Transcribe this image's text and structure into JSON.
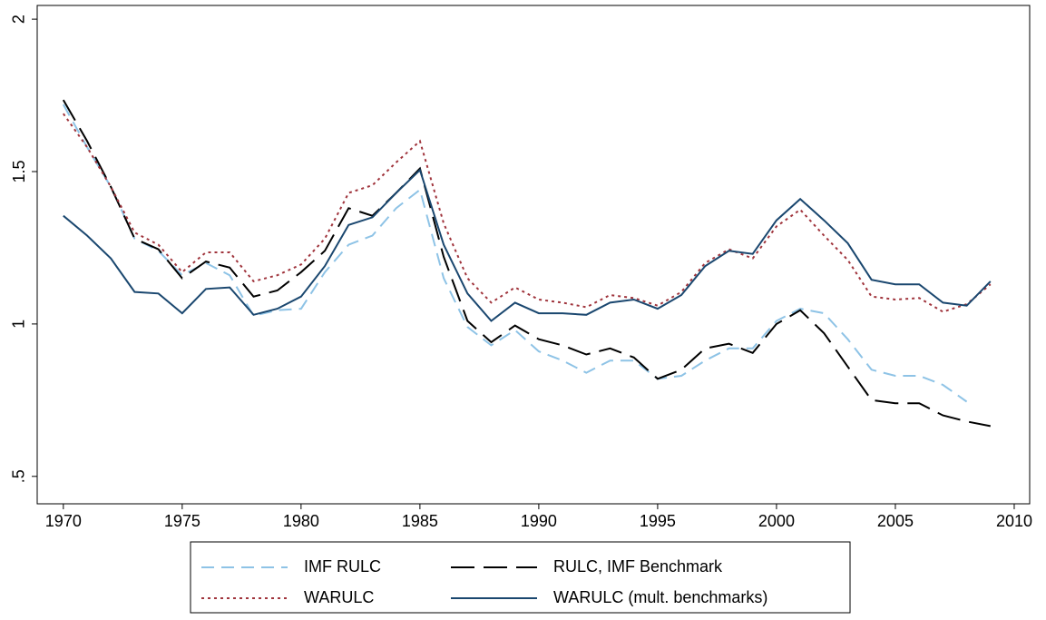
{
  "chart_data": {
    "type": "line",
    "x": [
      1970,
      1971,
      1972,
      1973,
      1974,
      1975,
      1976,
      1977,
      1978,
      1979,
      1980,
      1981,
      1982,
      1983,
      1984,
      1985,
      1986,
      1987,
      1988,
      1989,
      1990,
      1991,
      1992,
      1993,
      1994,
      1995,
      1996,
      1997,
      1998,
      1999,
      2000,
      2001,
      2002,
      2003,
      2004,
      2005,
      2006,
      2007,
      2008,
      2009
    ],
    "series": [
      {
        "name": "IMF RULC",
        "color": "#8ec3e6",
        "dash": "short",
        "values": [
          1.72,
          1.58,
          1.45,
          1.28,
          1.24,
          1.16,
          1.2,
          1.16,
          1.027,
          1.045,
          1.05,
          1.17,
          1.26,
          1.29,
          1.38,
          1.44,
          1.15,
          0.99,
          0.93,
          0.98,
          0.91,
          0.88,
          0.84,
          0.88,
          0.88,
          0.82,
          0.83,
          0.88,
          0.92,
          0.92,
          1.01,
          1.05,
          1.035,
          0.95,
          0.85,
          0.83,
          0.83,
          0.8,
          0.745,
          null
        ]
      },
      {
        "name": "RULC, IMF Benchmark",
        "color": "#000000",
        "dash": "long",
        "values": [
          1.735,
          1.6,
          1.45,
          1.28,
          1.245,
          1.15,
          1.205,
          1.185,
          1.09,
          1.11,
          1.17,
          1.24,
          1.38,
          1.355,
          1.43,
          1.51,
          1.22,
          1.01,
          0.94,
          0.995,
          0.95,
          0.93,
          0.9,
          0.92,
          0.89,
          0.82,
          0.85,
          0.92,
          0.935,
          0.905,
          1.0,
          1.045,
          0.97,
          0.86,
          0.75,
          0.74,
          0.74,
          0.7,
          0.68,
          0.665
        ]
      },
      {
        "name": "WARULC",
        "color": "#a0343c",
        "dash": "dot",
        "values": [
          1.69,
          1.58,
          1.45,
          1.3,
          1.26,
          1.17,
          1.235,
          1.235,
          1.14,
          1.16,
          1.195,
          1.28,
          1.43,
          1.455,
          1.53,
          1.6,
          1.33,
          1.15,
          1.07,
          1.12,
          1.08,
          1.07,
          1.055,
          1.095,
          1.085,
          1.06,
          1.105,
          1.2,
          1.245,
          1.215,
          1.32,
          1.375,
          1.29,
          1.21,
          1.09,
          1.08,
          1.085,
          1.04,
          1.065,
          1.13
        ]
      },
      {
        "name": "WARULC (mult. benchmarks)",
        "color": "#1a476f",
        "dash": "solid",
        "values": [
          1.355,
          1.29,
          1.215,
          1.105,
          1.1,
          1.035,
          1.115,
          1.12,
          1.03,
          1.05,
          1.09,
          1.19,
          1.325,
          1.35,
          1.43,
          1.505,
          1.26,
          1.1,
          1.01,
          1.07,
          1.035,
          1.035,
          1.03,
          1.07,
          1.08,
          1.05,
          1.095,
          1.19,
          1.24,
          1.23,
          1.34,
          1.41,
          1.34,
          1.265,
          1.145,
          1.13,
          1.13,
          1.07,
          1.06,
          1.14
        ]
      }
    ],
    "xlim": [
      1968.9,
      2010.65
    ],
    "xticks": [
      1970,
      1975,
      1980,
      1985,
      1990,
      1995,
      2000,
      2005,
      2010
    ],
    "ylim": [
      0.41,
      2.045
    ],
    "yticks": [
      {
        "value": 0.5,
        "label": ".5"
      },
      1,
      1.5,
      2
    ],
    "grid": false
  }
}
